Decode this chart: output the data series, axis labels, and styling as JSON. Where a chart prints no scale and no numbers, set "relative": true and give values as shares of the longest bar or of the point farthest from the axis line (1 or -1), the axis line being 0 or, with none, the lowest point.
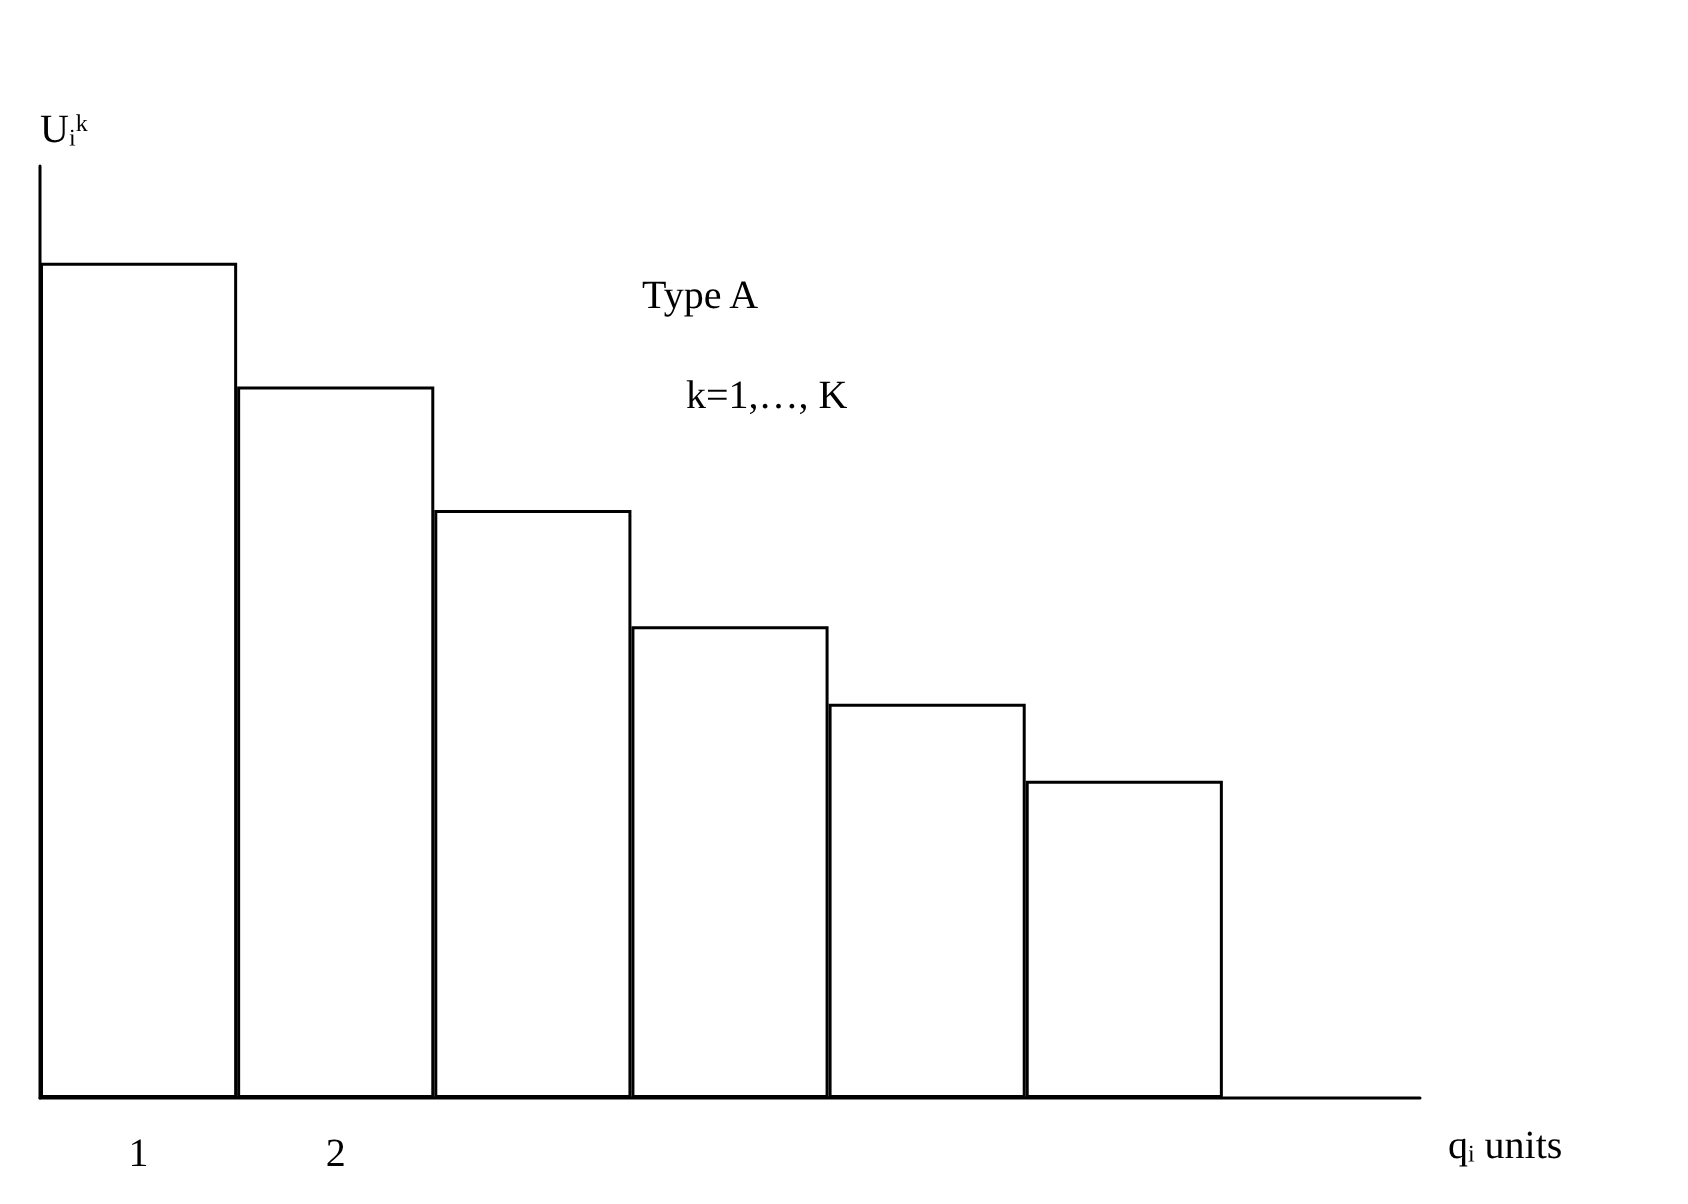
{
  "chart_data": {
    "type": "bar",
    "relative": true,
    "xlabel": "qᵢ units",
    "ylabel": "Uᵢᵏ",
    "categories": [
      "1",
      "2",
      null,
      null,
      null,
      null,
      null
    ],
    "values": [
      1,
      0.852,
      0.704,
      0.565,
      0.472,
      0.38,
      null
    ],
    "color": "#ffffff",
    "annotations": [
      "Type A",
      "k=1,…, K"
    ]
  }
}
